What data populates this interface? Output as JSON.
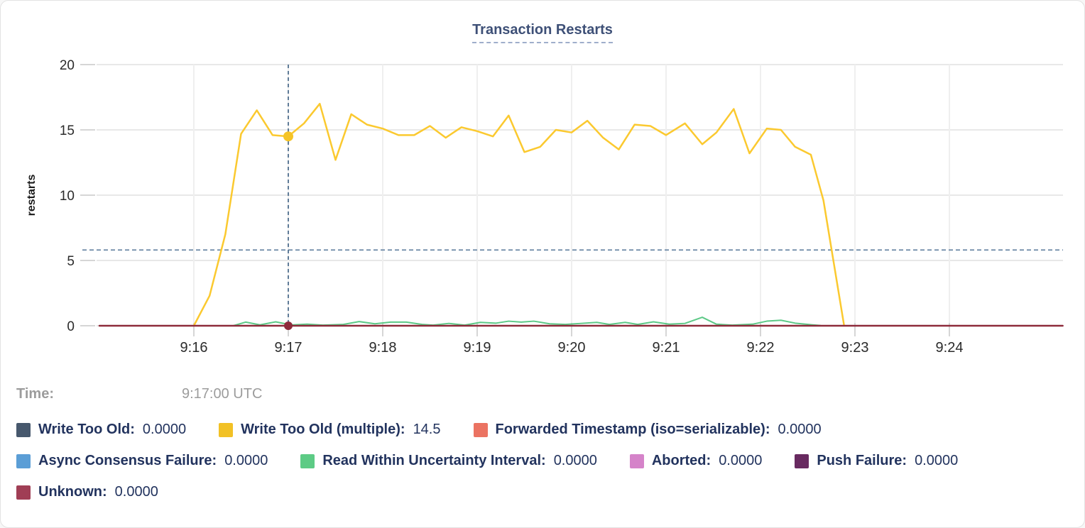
{
  "title": "Transaction Restarts",
  "chart_data": {
    "type": "line",
    "title": "Transaction Restarts",
    "ylabel": "restarts",
    "xlabel": "",
    "grid": true,
    "y_axis": {
      "ticks": [
        0,
        5,
        10,
        15,
        20
      ],
      "range": [
        0,
        20
      ]
    },
    "x_axis": {
      "tick_labels": [
        "9:16",
        "9:17",
        "9:18",
        "9:19",
        "9:20",
        "9:21",
        "9:22",
        "9:23",
        "9:24"
      ],
      "tick_seconds": [
        0,
        60,
        120,
        180,
        240,
        300,
        360,
        420,
        480
      ],
      "domain_seconds": [
        -60,
        552
      ]
    },
    "threshold_line": {
      "value": 5.8,
      "style": "dashed",
      "color": "#6B87A5"
    },
    "hover": {
      "time_sec": 60,
      "time_label": "9:17:00 UTC",
      "vline_color": "#51708E",
      "points": [
        {
          "series": "Write Too Old (multiple)",
          "value": 14.5,
          "color": "#F5C426",
          "radius": 7
        },
        {
          "series": "Unknown",
          "value": 0,
          "color": "#8E2B3B",
          "radius": 6
        }
      ]
    },
    "series": [
      {
        "name": "Write Too Old",
        "color": "#47586D",
        "points": []
      },
      {
        "name": "Write Too Old (multiple)",
        "color": "#FBC92F",
        "width": 2.5,
        "points": [
          [
            0,
            0
          ],
          [
            10,
            2.3
          ],
          [
            20,
            7.0
          ],
          [
            30,
            14.7
          ],
          [
            40,
            16.5
          ],
          [
            50,
            14.6
          ],
          [
            60,
            14.5
          ],
          [
            70,
            15.5
          ],
          [
            80,
            17.0
          ],
          [
            90,
            12.7
          ],
          [
            100,
            16.2
          ],
          [
            110,
            15.4
          ],
          [
            120,
            15.1
          ],
          [
            130,
            14.6
          ],
          [
            140,
            14.6
          ],
          [
            150,
            15.3
          ],
          [
            160,
            14.4
          ],
          [
            170,
            15.2
          ],
          [
            180,
            14.9
          ],
          [
            190,
            14.5
          ],
          [
            200,
            16.1
          ],
          [
            210,
            13.3
          ],
          [
            220,
            13.7
          ],
          [
            230,
            15.0
          ],
          [
            240,
            14.8
          ],
          [
            250,
            15.7
          ],
          [
            260,
            14.4
          ],
          [
            270,
            13.5
          ],
          [
            280,
            15.4
          ],
          [
            290,
            15.3
          ],
          [
            300,
            14.6
          ],
          [
            312,
            15.5
          ],
          [
            323,
            13.9
          ],
          [
            332,
            14.8
          ],
          [
            343,
            16.6
          ],
          [
            353,
            13.2
          ],
          [
            364,
            15.1
          ],
          [
            373,
            15.0
          ],
          [
            382,
            13.7
          ],
          [
            392,
            13.1
          ],
          [
            400,
            9.6
          ],
          [
            413,
            0.1
          ]
        ]
      },
      {
        "name": "Forwarded Timestamp (iso=serializable)",
        "color": "#EB7362",
        "points": []
      },
      {
        "name": "Async Consensus Failure",
        "color": "#5B9ED6",
        "points": []
      },
      {
        "name": "Read Within Uncertainty Interval",
        "color": "#5DC987",
        "width": 2,
        "points": [
          [
            25,
            0
          ],
          [
            33,
            0.28
          ],
          [
            42,
            0.07
          ],
          [
            52,
            0.3
          ],
          [
            62,
            0.06
          ],
          [
            72,
            0.12
          ],
          [
            82,
            0.05
          ],
          [
            95,
            0.1
          ],
          [
            105,
            0.32
          ],
          [
            115,
            0.15
          ],
          [
            125,
            0.28
          ],
          [
            135,
            0.28
          ],
          [
            145,
            0.1
          ],
          [
            152,
            0.05
          ],
          [
            162,
            0.18
          ],
          [
            172,
            0.05
          ],
          [
            182,
            0.26
          ],
          [
            192,
            0.2
          ],
          [
            200,
            0.35
          ],
          [
            208,
            0.28
          ],
          [
            216,
            0.35
          ],
          [
            226,
            0.15
          ],
          [
            236,
            0.1
          ],
          [
            246,
            0.18
          ],
          [
            256,
            0.26
          ],
          [
            264,
            0.1
          ],
          [
            274,
            0.26
          ],
          [
            282,
            0.1
          ],
          [
            292,
            0.3
          ],
          [
            302,
            0.12
          ],
          [
            312,
            0.18
          ],
          [
            323,
            0.65
          ],
          [
            332,
            0.12
          ],
          [
            342,
            0.05
          ],
          [
            355,
            0.12
          ],
          [
            364,
            0.35
          ],
          [
            373,
            0.42
          ],
          [
            382,
            0.2
          ],
          [
            392,
            0.08
          ],
          [
            398,
            0.02
          ]
        ]
      },
      {
        "name": "Aborted",
        "color": "#D583C9",
        "points": []
      },
      {
        "name": "Push Failure",
        "color": "#682A60",
        "points": []
      },
      {
        "name": "Unknown",
        "color": "#8E2B3B",
        "width": 2.5,
        "points": [
          [
            -60,
            0
          ],
          [
            552,
            0
          ]
        ]
      }
    ]
  },
  "legend": {
    "time_label": "Time:",
    "time_value": "9:17:00 UTC",
    "items": [
      {
        "label": "Write Too Old:",
        "value": "0.0000",
        "color": "#47586D"
      },
      {
        "label": "Write Too Old (multiple):",
        "value": "14.5",
        "color": "#F2C125"
      },
      {
        "label": "Forwarded Timestamp (iso=serializable):",
        "value": "0.0000",
        "color": "#EB7362"
      },
      {
        "label": "Async Consensus Failure:",
        "value": "0.0000",
        "color": "#5B9ED6"
      },
      {
        "label": "Read Within Uncertainty Interval:",
        "value": "0.0000",
        "color": "#5DCB85"
      },
      {
        "label": "Aborted:",
        "value": "0.0000",
        "color": "#D583C9"
      },
      {
        "label": "Push Failure:",
        "value": "0.0000",
        "color": "#682A60"
      },
      {
        "label": "Unknown:",
        "value": "0.0000",
        "color": "#A03E55"
      }
    ]
  },
  "colors": {
    "title": "#3E5077",
    "axis_text": "#2B2B2B",
    "gridline": "#E8E8E8",
    "tick": "#D6D6D6",
    "legend_text": "#22335E",
    "time_text": "#9C9C9C"
  }
}
